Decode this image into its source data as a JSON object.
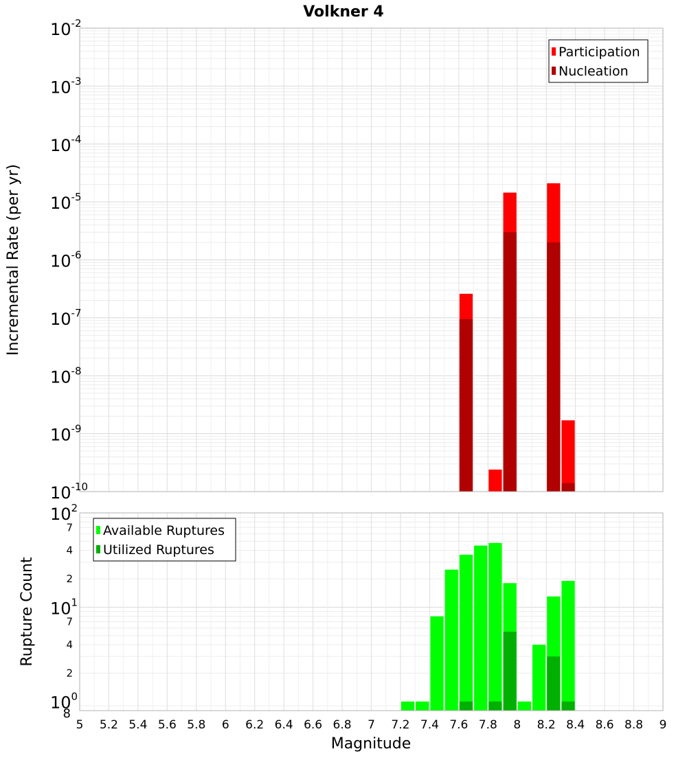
{
  "chart_data": [
    {
      "type": "bar",
      "title": "Volkner 4",
      "ylabel": "Incremental Rate (per yr)",
      "xlabel": "",
      "y_scale": "log",
      "ylim": [
        1e-10,
        0.01
      ],
      "xlim": [
        5,
        9
      ],
      "y_ticks": [
        {
          "base": "10",
          "exp": "-2"
        },
        {
          "base": "10",
          "exp": "-3"
        },
        {
          "base": "10",
          "exp": "-4"
        },
        {
          "base": "10",
          "exp": "-5"
        },
        {
          "base": "10",
          "exp": "-6"
        },
        {
          "base": "10",
          "exp": "-7"
        },
        {
          "base": "10",
          "exp": "-8"
        },
        {
          "base": "10",
          "exp": "-9"
        },
        {
          "base": "10",
          "exp": "-10"
        }
      ],
      "grid": true,
      "legend_position": "top-right",
      "series": [
        {
          "name": "Participation",
          "color": "#ff0000",
          "x": [
            7.65,
            7.85,
            7.95,
            8.25,
            8.35
          ],
          "values": [
            2.6e-07,
            2.4e-10,
            1.45e-05,
            2.1e-05,
            1.7e-09
          ]
        },
        {
          "name": "Nucleation",
          "color": "#b00000",
          "x": [
            7.65,
            7.95,
            8.25,
            8.35
          ],
          "values": [
            9.5e-08,
            3e-06,
            2e-06,
            1.4e-10
          ]
        }
      ]
    },
    {
      "type": "bar",
      "title": "",
      "ylabel": "Rupture Count",
      "xlabel": "Magnitude",
      "y_scale": "log",
      "ylim": [
        0.8,
        100
      ],
      "xlim": [
        5,
        9
      ],
      "x_ticks": [
        "5",
        "5.2",
        "5.4",
        "5.6",
        "5.8",
        "6",
        "6.2",
        "6.4",
        "6.6",
        "6.8",
        "7",
        "7.2",
        "7.4",
        "7.6",
        "7.8",
        "8",
        "8.2",
        "8.4",
        "8.6",
        "8.8",
        "9"
      ],
      "y_major_ticks": [
        {
          "value": 100,
          "base": "10",
          "exp": "2"
        },
        {
          "value": 10,
          "base": "10",
          "exp": "1"
        },
        {
          "value": 1,
          "base": "10",
          "exp": "0"
        }
      ],
      "y_minor_ticks": [
        {
          "value": 70,
          "label": "7"
        },
        {
          "value": 40,
          "label": "4"
        },
        {
          "value": 20,
          "label": "2"
        },
        {
          "value": 7,
          "label": "7"
        },
        {
          "value": 4,
          "label": "4"
        },
        {
          "value": 2,
          "label": "2"
        },
        {
          "value": 0.8,
          "label": "8"
        }
      ],
      "grid": true,
      "legend_position": "top-left",
      "series": [
        {
          "name": "Available Ruptures",
          "color": "#00ff00",
          "x": [
            7.25,
            7.35,
            7.45,
            7.55,
            7.65,
            7.75,
            7.85,
            7.95,
            8.05,
            8.15,
            8.25,
            8.35
          ],
          "values": [
            1,
            1,
            8,
            25,
            36,
            45,
            48,
            18,
            1,
            4,
            13,
            19
          ]
        },
        {
          "name": "Utilized Ruptures",
          "color": "#00b000",
          "x": [
            7.65,
            7.85,
            7.95,
            8.25,
            8.35
          ],
          "values": [
            1,
            1,
            5.5,
            3,
            1
          ]
        }
      ]
    }
  ]
}
